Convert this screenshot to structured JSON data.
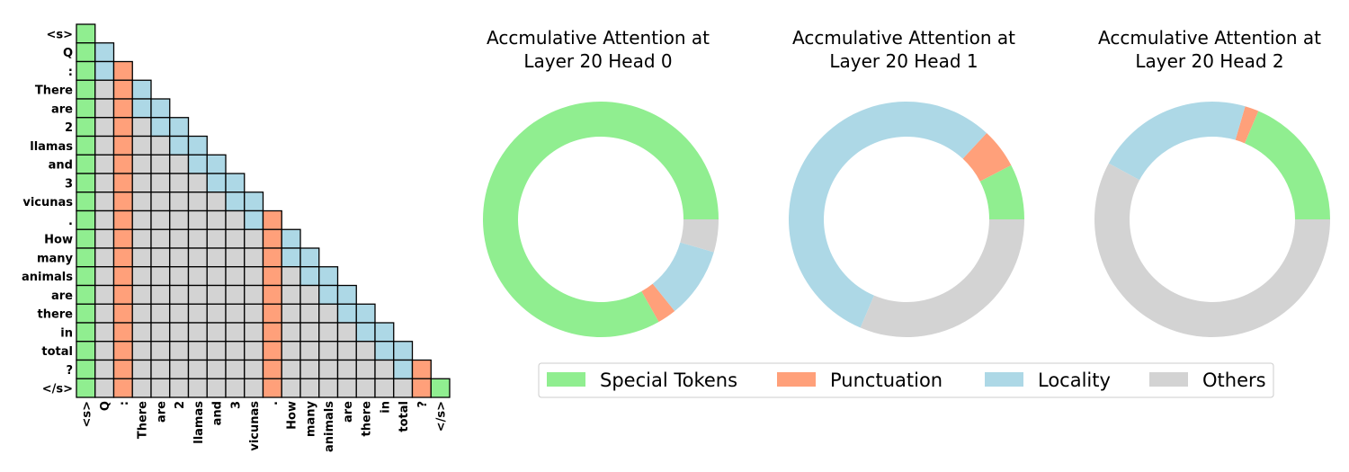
{
  "colors": {
    "special": "#90EE90",
    "punctuation": "#FFA07A",
    "locality": "#ADD8E6",
    "others": "#D3D3D3"
  },
  "chart_data": [
    {
      "type": "heatmap",
      "description": "Lower-triangular attention mask; each visible cell colored by category",
      "tokens": [
        "<s>",
        "Q",
        ":",
        "There",
        "are",
        "2",
        "llamas",
        "and",
        "3",
        "vicunas",
        ".",
        "How",
        "many",
        "animals",
        "are",
        "there",
        "in",
        "total",
        "?",
        "</s>"
      ],
      "special_token_indices": [
        0,
        19
      ],
      "punctuation_token_indices": [
        2,
        10,
        18
      ],
      "locality_window": 2,
      "categories": [
        "Special Tokens",
        "Punctuation",
        "Locality",
        "Others"
      ]
    },
    {
      "type": "pie",
      "donut": true,
      "title": "Accmulative Attention at\nLayer 20 Head 0",
      "labels": [
        "Special Tokens",
        "Punctuation",
        "Locality",
        "Others"
      ],
      "values": [
        83.2,
        2.6,
        9.7,
        4.5
      ]
    },
    {
      "type": "pie",
      "donut": true,
      "title": "Accmulative Attention at\nLayer 20 Head 1",
      "labels": [
        "Special Tokens",
        "Punctuation",
        "Locality",
        "Others"
      ],
      "values": [
        7.6,
        5.5,
        55.5,
        31.4
      ]
    },
    {
      "type": "pie",
      "donut": true,
      "title": "Accmulative Attention at\nLayer 20 Head 2",
      "labels": [
        "Special Tokens",
        "Punctuation",
        "Locality",
        "Others"
      ],
      "values": [
        18.6,
        1.9,
        21.6,
        57.9
      ]
    }
  ],
  "legend": {
    "placement": "bottom-center",
    "items": [
      "Special Tokens",
      "Punctuation",
      "Locality",
      "Others"
    ]
  }
}
